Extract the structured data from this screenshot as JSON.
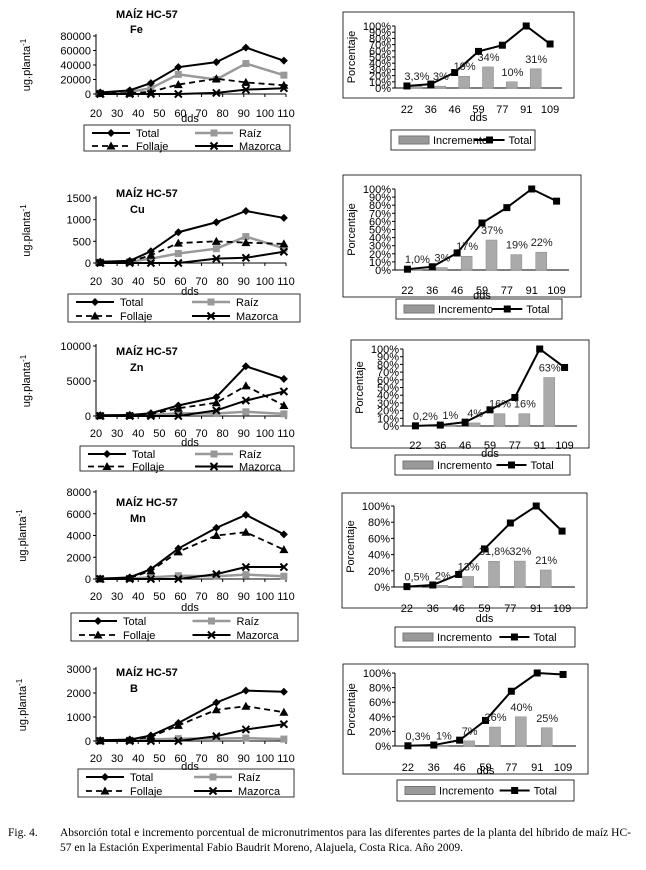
{
  "figure": {
    "label": "Fig. 4.",
    "caption": "Absorción total e incremento porcentual de micronutrimentos para las diferentes partes de la planta del híbrido de maíz HC-57 en la Estación Experimental Fabio Baudrit Moreno, Alajuela, Costa Rica. Año 2009."
  },
  "chart_data": [
    {
      "type": "line",
      "panel": "left",
      "nutrient": "Fe",
      "title": "MAÍZ HC-57",
      "subtitle": "Fe",
      "ylabel": "ug.planta-1",
      "xlabel": "dds",
      "ylim": [
        0,
        80000
      ],
      "yticks": [
        "0",
        "20000",
        "40000",
        "60000",
        "80000"
      ],
      "xticks": [
        "20",
        "30",
        "40",
        "50",
        "60",
        "70",
        "80",
        "90",
        "100",
        "110"
      ],
      "x": [
        22,
        36,
        46,
        59,
        77,
        91,
        109
      ],
      "series": [
        {
          "name": "Total",
          "values": [
            2000,
            5000,
            15000,
            37000,
            44000,
            64000,
            46000
          ]
        },
        {
          "name": "Raíz",
          "values": [
            1000,
            3000,
            8000,
            27000,
            20000,
            42000,
            26000
          ]
        },
        {
          "name": "Follaje",
          "values": [
            500,
            1000,
            3000,
            13000,
            21000,
            16000,
            12000
          ]
        },
        {
          "name": "Mazorca",
          "values": [
            0,
            0,
            0,
            0,
            1500,
            6000,
            8000
          ]
        }
      ],
      "legend": [
        "Total",
        "Raíz",
        "Follaje",
        "Mazorca"
      ]
    },
    {
      "type": "bar+line",
      "panel": "right",
      "nutrient": "Fe",
      "ylabel": "Porcentaje",
      "xlabel": "dds",
      "yticks": [
        "0%",
        "10%",
        "20%",
        "30%",
        "40%",
        "50%",
        "60%",
        "70%",
        "80%",
        "90%",
        "100%"
      ],
      "categories": [
        "22",
        "36",
        "46",
        "59",
        "77",
        "91",
        "109"
      ],
      "incremento": [
        3.3,
        3,
        19,
        34,
        10,
        31,
        null
      ],
      "total": [
        3.3,
        6.3,
        25,
        59,
        69,
        100,
        71
      ],
      "labels": [
        "3,3%",
        "3%",
        "19%",
        "34%",
        "10%",
        "31%",
        ""
      ],
      "legend": [
        "Incremento",
        "Total"
      ]
    },
    {
      "type": "line",
      "panel": "left",
      "nutrient": "Cu",
      "title": "MAÍZ HC-57",
      "subtitle": "Cu",
      "ylabel": "ug.planta-1",
      "xlabel": "dds",
      "ylim": [
        0,
        1500
      ],
      "yticks": [
        "0",
        "500",
        "1000",
        "1500"
      ],
      "xticks": [
        "20",
        "30",
        "40",
        "50",
        "60",
        "70",
        "80",
        "90",
        "100",
        "110"
      ],
      "x": [
        22,
        36,
        46,
        59,
        77,
        91,
        109
      ],
      "series": [
        {
          "name": "Total",
          "values": [
            30,
            50,
            270,
            710,
            940,
            1200,
            1040
          ]
        },
        {
          "name": "Raíz",
          "values": [
            20,
            30,
            100,
            220,
            330,
            610,
            340
          ]
        },
        {
          "name": "Follaje",
          "values": [
            10,
            30,
            180,
            460,
            500,
            470,
            440
          ]
        },
        {
          "name": "Mazorca",
          "values": [
            0,
            0,
            0,
            0,
            100,
            120,
            260
          ]
        }
      ],
      "legend": [
        "Total",
        "Raíz",
        "Follaje",
        "Mazorca"
      ]
    },
    {
      "type": "bar+line",
      "panel": "right",
      "nutrient": "Cu",
      "ylabel": "Porcentaje",
      "xlabel": "dds",
      "yticks": [
        "0%",
        "10%",
        "20%",
        "30%",
        "40%",
        "50%",
        "60%",
        "70%",
        "80%",
        "90%",
        "100%"
      ],
      "categories": [
        "22",
        "36",
        "46",
        "59",
        "77",
        "91",
        "109"
      ],
      "incremento": [
        1,
        3,
        17,
        37,
        19,
        22,
        null
      ],
      "total": [
        1,
        4,
        21,
        58,
        77,
        100,
        85
      ],
      "labels": [
        "1,0%",
        "3%",
        "17%",
        "37%",
        "19%",
        "22%",
        ""
      ],
      "legend": [
        "Incremento",
        "Total"
      ]
    },
    {
      "type": "line",
      "panel": "left",
      "nutrient": "Zn",
      "title": "MAÍZ HC-57",
      "subtitle": "Zn",
      "ylabel": "ug.planta-1",
      "xlabel": "dds",
      "ylim": [
        0,
        10000
      ],
      "yticks": [
        "0",
        "5000",
        "10000"
      ],
      "xticks": [
        "20",
        "30",
        "40",
        "50",
        "60",
        "70",
        "80",
        "90",
        "100",
        "110"
      ],
      "x": [
        22,
        36,
        46,
        59,
        77,
        91,
        109
      ],
      "series": [
        {
          "name": "Total",
          "values": [
            100,
            150,
            400,
            1500,
            2700,
            7100,
            5300
          ]
        },
        {
          "name": "Raíz",
          "values": [
            50,
            80,
            150,
            400,
            350,
            600,
            300
          ]
        },
        {
          "name": "Follaje",
          "values": [
            50,
            100,
            250,
            1100,
            1900,
            4300,
            1500
          ]
        },
        {
          "name": "Mazorca",
          "values": [
            0,
            0,
            0,
            0,
            800,
            2200,
            3500
          ]
        }
      ],
      "legend": [
        "Total",
        "Raíz",
        "Follaje",
        "Mazorca"
      ]
    },
    {
      "type": "bar+line",
      "panel": "right",
      "nutrient": "Zn",
      "ylabel": "Porcentaje",
      "xlabel": "dds",
      "yticks": [
        "0%",
        "10%",
        "20%",
        "30%",
        "40%",
        "50%",
        "60%",
        "70%",
        "80%",
        "90%",
        "100%"
      ],
      "categories": [
        "22",
        "36",
        "46",
        "59",
        "77",
        "91",
        "109"
      ],
      "incremento": [
        0.2,
        1,
        4,
        16,
        16,
        63,
        null
      ],
      "total": [
        0.2,
        1.2,
        5,
        21,
        37,
        100,
        76
      ],
      "labels": [
        "0,2%",
        "1%",
        "4%",
        "16%",
        "16%",
        "63%",
        ""
      ],
      "legend": [
        "Incremento",
        "Total"
      ]
    },
    {
      "type": "line",
      "panel": "left",
      "nutrient": "Mn",
      "title": "MAÍZ HC-57",
      "subtitle": "Mn",
      "ylabel": "ug.planta-1",
      "xlabel": "dds",
      "ylim": [
        0,
        8000
      ],
      "yticks": [
        "0",
        "2000",
        "4000",
        "6000",
        "8000"
      ],
      "xticks": [
        "20",
        "30",
        "40",
        "50",
        "60",
        "70",
        "80",
        "90",
        "100",
        "110"
      ],
      "x": [
        22,
        36,
        46,
        59,
        77,
        91,
        109
      ],
      "series": [
        {
          "name": "Total",
          "values": [
            30,
            150,
            900,
            2800,
            4700,
            5900,
            4100
          ]
        },
        {
          "name": "Raíz",
          "values": [
            20,
            50,
            150,
            300,
            250,
            400,
            250
          ]
        },
        {
          "name": "Follaje",
          "values": [
            10,
            100,
            750,
            2500,
            4000,
            4300,
            2700
          ]
        },
        {
          "name": "Mazorca",
          "values": [
            0,
            0,
            0,
            0,
            450,
            1100,
            1100
          ]
        }
      ],
      "legend": [
        "Total",
        "Raíz",
        "Follaje",
        "Mazorca"
      ]
    },
    {
      "type": "bar+line",
      "panel": "right",
      "nutrient": "Mn",
      "ylabel": "Porcentaje",
      "xlabel": "dds",
      "yticks": [
        "0%",
        "20%",
        "40%",
        "60%",
        "80%",
        "100%"
      ],
      "categories": [
        "22",
        "36",
        "46",
        "59",
        "77",
        "91",
        "109"
      ],
      "incremento": [
        0.5,
        2,
        13,
        31.8,
        32,
        21,
        null
      ],
      "total": [
        0.5,
        2.5,
        15.5,
        47,
        79,
        100,
        69
      ],
      "labels": [
        "0,5%",
        "2%",
        "13%",
        "31,8%",
        "32%",
        "21%",
        ""
      ],
      "legend": [
        "Incremento",
        "Total"
      ]
    },
    {
      "type": "line",
      "panel": "left",
      "nutrient": "B",
      "title": "MAÍZ HC-57",
      "subtitle": "B",
      "ylabel": "ug.planta-1",
      "xlabel": "dds",
      "ylim": [
        0,
        3000
      ],
      "yticks": [
        "0",
        "1000",
        "2000",
        "3000"
      ],
      "xticks": [
        "20",
        "30",
        "40",
        "50",
        "60",
        "70",
        "80",
        "90",
        "100",
        "110"
      ],
      "x": [
        22,
        36,
        46,
        59,
        77,
        91,
        109
      ],
      "series": [
        {
          "name": "Total",
          "values": [
            30,
            60,
            230,
            750,
            1600,
            2100,
            2050
          ]
        },
        {
          "name": "Raíz",
          "values": [
            20,
            30,
            60,
            100,
            100,
            120,
            80
          ]
        },
        {
          "name": "Follaje",
          "values": [
            10,
            40,
            170,
            650,
            1300,
            1450,
            1200
          ]
        },
        {
          "name": "Mazorca",
          "values": [
            0,
            0,
            0,
            0,
            200,
            480,
            700
          ]
        }
      ],
      "legend": [
        "Total",
        "Raíz",
        "Follaje",
        "Mazorca"
      ]
    },
    {
      "type": "bar+line",
      "panel": "right",
      "nutrient": "B",
      "ylabel": "Porcentaje",
      "xlabel": "dds",
      "yticks": [
        "0%",
        "20%",
        "40%",
        "60%",
        "80%",
        "100%"
      ],
      "categories": [
        "22",
        "36",
        "46",
        "59",
        "77",
        "91",
        "109"
      ],
      "incremento": [
        0.3,
        1,
        7,
        26,
        40,
        25,
        null
      ],
      "total": [
        0.3,
        1.3,
        8,
        35,
        75,
        100,
        98
      ],
      "labels": [
        "0,3%",
        "1%",
        "7%",
        "26%",
        "40%",
        "25%",
        ""
      ],
      "legend": [
        "Incremento",
        "Total"
      ]
    }
  ]
}
